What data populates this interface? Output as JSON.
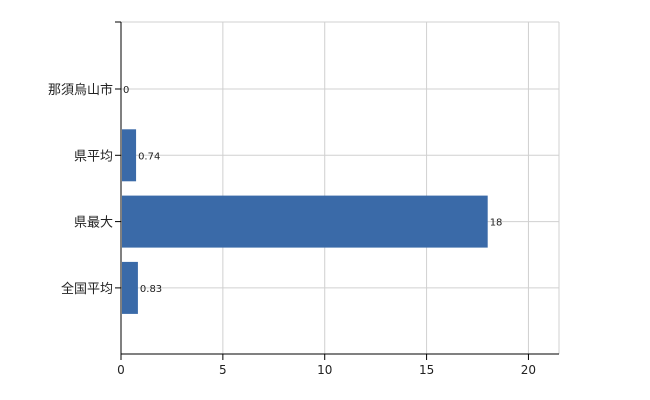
{
  "chart_data": {
    "type": "bar",
    "orientation": "horizontal",
    "categories": [
      "那須烏山市",
      "県平均",
      "県最大",
      "全国平均"
    ],
    "values": [
      0,
      0.74,
      18,
      0.83
    ],
    "data_labels": [
      "0",
      "0.74",
      "18",
      "0.83"
    ],
    "xlim": [
      0,
      21.5
    ],
    "xticks": [
      0,
      5,
      10,
      15,
      20
    ],
    "xtick_labels": [
      "0",
      "5",
      "10",
      "15",
      "20"
    ],
    "grid": true,
    "bar_color": "#3a6aa8",
    "title": "",
    "xlabel": "",
    "ylabel": ""
  }
}
